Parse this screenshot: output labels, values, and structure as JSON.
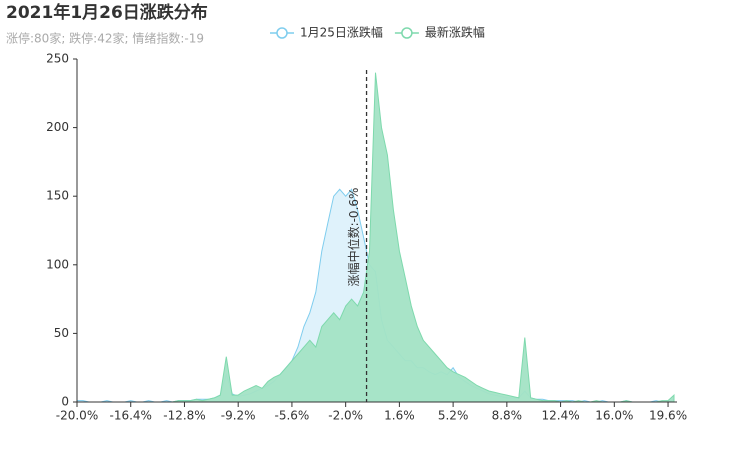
{
  "chart_data": {
    "type": "area",
    "title": "2021年1月26日涨跌分布",
    "subtitle": "涨停:80家; 跌停:42家; 情绪指数:-19",
    "x": [
      -20,
      -19.6,
      -19.2,
      -18.8,
      -18.4,
      -18,
      -17.6,
      -17.2,
      -16.8,
      -16.4,
      -16,
      -15.6,
      -15.2,
      -14.8,
      -14.4,
      -14,
      -13.6,
      -13.2,
      -12.8,
      -12.4,
      -12,
      -11.6,
      -11.2,
      -10.8,
      -10.4,
      -10,
      -9.6,
      -9.2,
      -8.8,
      -8.4,
      -8,
      -7.6,
      -7.2,
      -6.8,
      -6.4,
      -6,
      -5.6,
      -5.2,
      -4.8,
      -4.4,
      -4,
      -3.6,
      -3.2,
      -2.8,
      -2.4,
      -2,
      -1.6,
      -1.2,
      -0.8,
      -0.4,
      0,
      0.4,
      0.8,
      1.2,
      1.6,
      2,
      2.4,
      2.8,
      3.2,
      3.6,
      4,
      4.4,
      4.8,
      5.2,
      5.6,
      6,
      6.4,
      6.8,
      7.2,
      7.6,
      8,
      8.4,
      8.8,
      9.2,
      9.6,
      10,
      10.4,
      10.8,
      11.2,
      11.6,
      12,
      12.4,
      12.8,
      13.2,
      13.6,
      14,
      14.4,
      14.8,
      15.2,
      15.6,
      16,
      16.4,
      16.8,
      17.2,
      17.6,
      18,
      18.4,
      18.8,
      19.2,
      19.6,
      20
    ],
    "series": [
      {
        "name": "1月25日涨跌幅",
        "color": "#7fcdee",
        "fill": "#dcf1fb",
        "values": [
          1,
          1,
          0,
          0,
          0,
          1,
          0,
          0,
          0,
          1,
          0,
          0,
          1,
          0,
          0,
          1,
          0,
          1,
          1,
          1,
          2,
          2,
          2,
          3,
          5,
          20,
          6,
          4,
          5,
          6,
          8,
          10,
          12,
          15,
          20,
          25,
          30,
          40,
          55,
          65,
          80,
          110,
          130,
          150,
          155,
          150,
          155,
          140,
          120,
          100,
          95,
          60,
          45,
          40,
          35,
          30,
          30,
          25,
          25,
          22,
          20,
          22,
          20,
          25,
          18,
          15,
          12,
          10,
          8,
          6,
          5,
          4,
          3,
          3,
          3,
          8,
          3,
          2,
          2,
          1,
          1,
          1,
          1,
          1,
          0,
          1,
          0,
          0,
          1,
          0,
          0,
          0,
          1,
          0,
          0,
          0,
          0,
          1,
          0,
          0,
          2
        ]
      },
      {
        "name": "最新涨跌幅",
        "color": "#7ed9ad",
        "fill": "#a3e3c5",
        "values": [
          0,
          0,
          0,
          0,
          0,
          0,
          0,
          0,
          0,
          0,
          0,
          0,
          0,
          0,
          0,
          0,
          0,
          1,
          1,
          1,
          2,
          1,
          2,
          3,
          5,
          33,
          5,
          5,
          8,
          10,
          12,
          10,
          15,
          18,
          20,
          25,
          30,
          35,
          40,
          45,
          40,
          55,
          60,
          65,
          60,
          70,
          75,
          70,
          80,
          110,
          240,
          200,
          180,
          140,
          110,
          90,
          70,
          55,
          45,
          40,
          35,
          30,
          25,
          22,
          20,
          18,
          15,
          12,
          10,
          8,
          7,
          6,
          5,
          4,
          3,
          47,
          3,
          2,
          1,
          1,
          1,
          0,
          1,
          0,
          1,
          0,
          0,
          1,
          0,
          0,
          0,
          0,
          1,
          0,
          0,
          0,
          0,
          0,
          1,
          1,
          5
        ]
      }
    ],
    "xlim": [
      -20,
      20.2
    ],
    "xticks": [
      {
        "value": -20,
        "label": "-20.0%"
      },
      {
        "value": -16.4,
        "label": "-16.4%"
      },
      {
        "value": -12.8,
        "label": "-12.8%"
      },
      {
        "value": -9.2,
        "label": "-9.2%"
      },
      {
        "value": -5.6,
        "label": "-5.6%"
      },
      {
        "value": -2,
        "label": "-2.0%"
      },
      {
        "value": 1.6,
        "label": "1.6%"
      },
      {
        "value": 5.2,
        "label": "5.2%"
      },
      {
        "value": 8.8,
        "label": "8.8%"
      },
      {
        "value": 12.4,
        "label": "12.4%"
      },
      {
        "value": 16,
        "label": "16.0%"
      },
      {
        "value": 19.6,
        "label": "19.6%"
      }
    ],
    "ylim": [
      0,
      250
    ],
    "yticks": [
      0,
      50,
      100,
      150,
      200,
      250
    ],
    "median": {
      "value": -0.6,
      "label": "涨幅中位数:-0.6%"
    },
    "grid": false
  }
}
